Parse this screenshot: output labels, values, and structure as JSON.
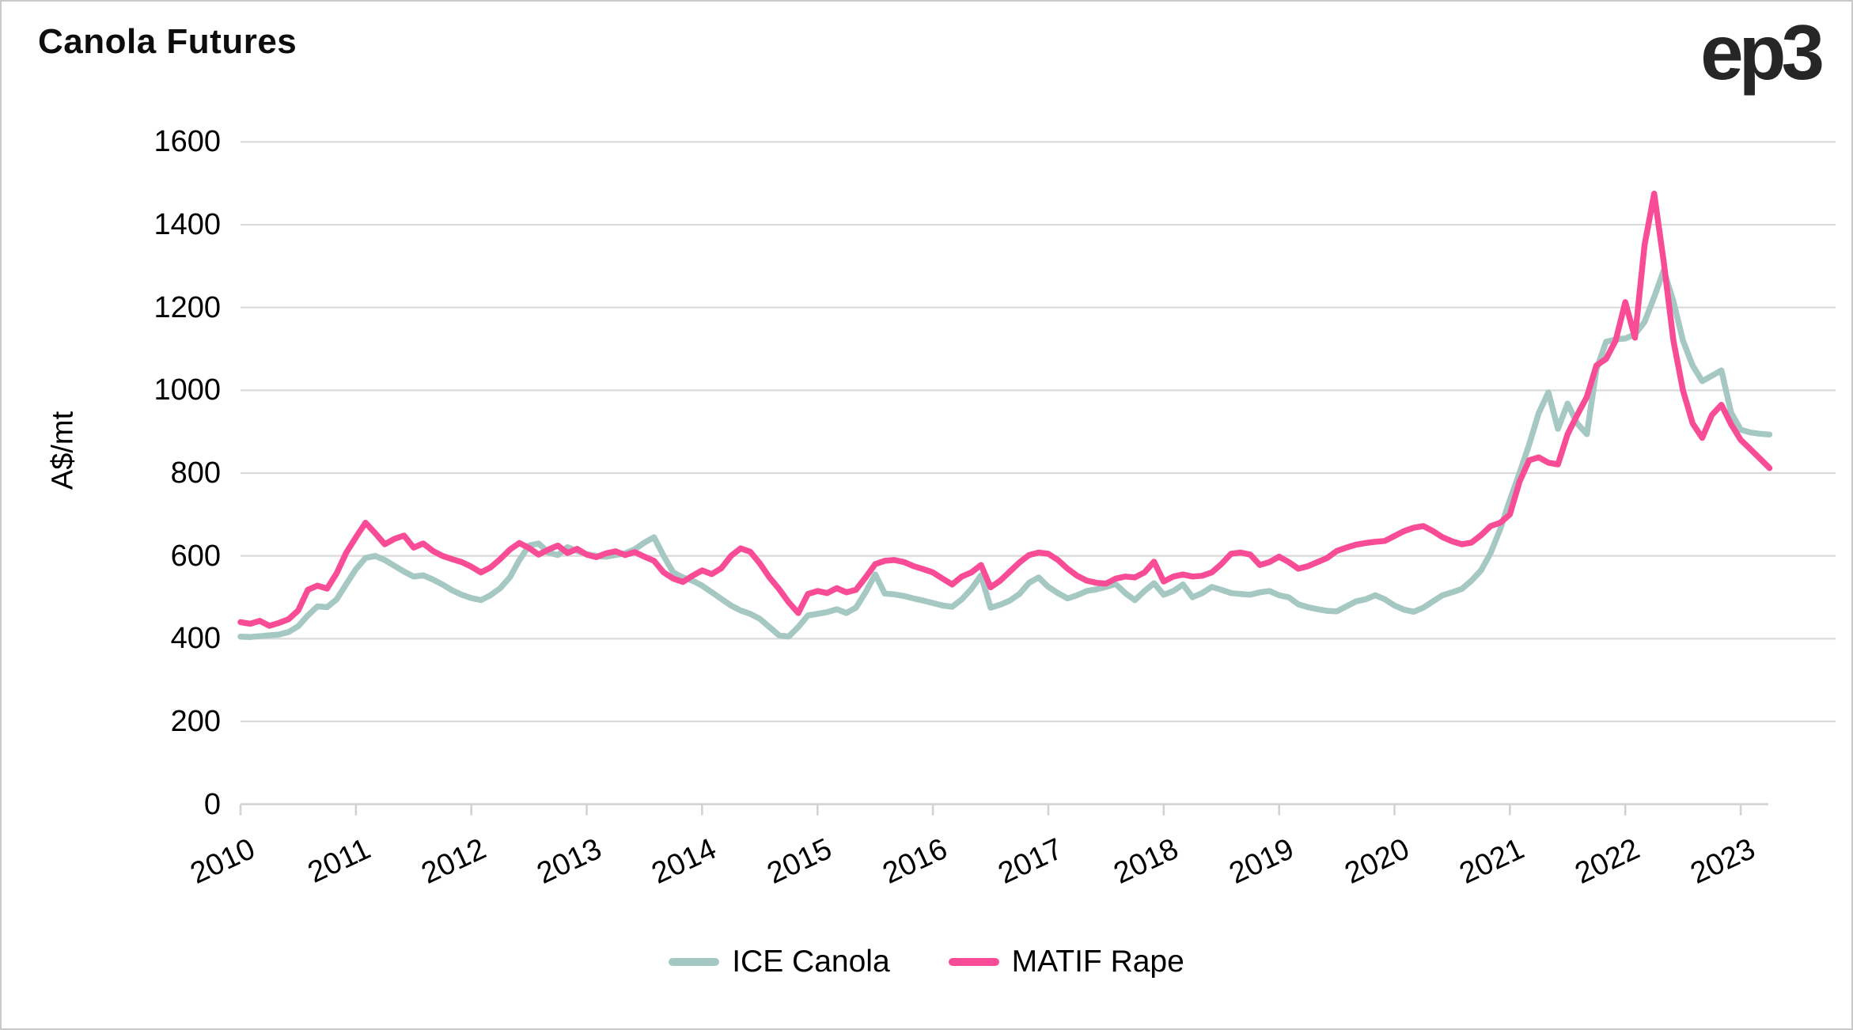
{
  "header": {
    "title": "Canola Futures",
    "logo_text": "ep3"
  },
  "page": {
    "background": "#ffffff",
    "border_color": "#c9c9c9"
  },
  "axis_style": {
    "gridline_color": "#dadada",
    "axis_line_color": "#d2d2d2",
    "text_color": "#000000"
  },
  "chart_data": {
    "type": "line",
    "title": "Canola Futures",
    "xlabel": "",
    "ylabel": "A$/mt",
    "ylim": [
      0,
      1600
    ],
    "y_ticks": [
      0,
      200,
      400,
      600,
      800,
      1000,
      1200,
      1400,
      1600
    ],
    "x_tick_labels": [
      "2010",
      "2011",
      "2012",
      "2013",
      "2014",
      "2015",
      "2016",
      "2017",
      "2018",
      "2019",
      "2020",
      "2021",
      "2022",
      "2023"
    ],
    "x_start": {
      "year": 2010,
      "month": 1
    },
    "x_end": {
      "year": 2023,
      "month": 4
    },
    "frequency": "monthly",
    "grid": "horizontal",
    "legend_position": "bottom-center",
    "series": [
      {
        "name": "ICE Canola",
        "color": "#a5c8c3",
        "values": [
          405,
          404,
          406,
          408,
          410,
          416,
          430,
          456,
          478,
          476,
          495,
          532,
          568,
          595,
          600,
          590,
          576,
          562,
          550,
          553,
          543,
          531,
          517,
          506,
          498,
          493,
          505,
          522,
          548,
          590,
          625,
          630,
          608,
          602,
          621,
          612,
          604,
          600,
          598,
          602,
          606,
          616,
          632,
          645,
          600,
          560,
          548,
          540,
          528,
          512,
          496,
          480,
          468,
          460,
          448,
          428,
          408,
          405,
          428,
          456,
          460,
          464,
          471,
          462,
          475,
          512,
          555,
          509,
          507,
          503,
          497,
          492,
          486,
          480,
          477,
          495,
          520,
          553,
          475,
          482,
          492,
          508,
          535,
          548,
          525,
          510,
          497,
          505,
          515,
          519,
          525,
          532,
          510,
          493,
          515,
          534,
          506,
          515,
          531,
          500,
          510,
          525,
          518,
          510,
          508,
          506,
          512,
          515,
          505,
          500,
          483,
          476,
          471,
          467,
          466,
          478,
          490,
          495,
          505,
          495,
          480,
          470,
          465,
          475,
          490,
          505,
          512,
          520,
          540,
          565,
          607,
          665,
          735,
          800,
          869,
          945,
          995,
          907,
          968,
          920,
          894,
          1050,
          1117,
          1123,
          1125,
          1135,
          1165,
          1225,
          1290,
          1215,
          1120,
          1060,
          1022,
          1035,
          1048,
          946,
          905,
          898,
          895,
          893
        ]
      },
      {
        "name": "MATIF Rape",
        "color": "#f84d96",
        "values": [
          440,
          436,
          443,
          431,
          438,
          447,
          468,
          518,
          528,
          521,
          558,
          608,
          645,
          680,
          655,
          628,
          641,
          649,
          620,
          630,
          612,
          600,
          592,
          585,
          574,
          560,
          572,
          592,
          615,
          631,
          619,
          603,
          615,
          625,
          607,
          617,
          603,
          597,
          606,
          611,
          602,
          609,
          598,
          588,
          560,
          545,
          537,
          552,
          565,
          556,
          570,
          600,
          618,
          610,
          582,
          548,
          520,
          488,
          462,
          508,
          515,
          510,
          522,
          512,
          518,
          548,
          580,
          588,
          590,
          585,
          575,
          568,
          560,
          545,
          531,
          550,
          560,
          578,
          524,
          540,
          562,
          584,
          602,
          608,
          605,
          590,
          569,
          552,
          540,
          535,
          533,
          545,
          550,
          548,
          560,
          586,
          538,
          550,
          555,
          550,
          552,
          560,
          580,
          605,
          608,
          603,
          578,
          585,
          598,
          585,
          569,
          575,
          585,
          595,
          612,
          620,
          627,
          631,
          634,
          636,
          648,
          660,
          668,
          672,
          660,
          645,
          635,
          628,
          632,
          650,
          672,
          680,
          700,
          779,
          831,
          838,
          825,
          821,
          894,
          940,
          984,
          1060,
          1076,
          1120,
          1213,
          1127,
          1350,
          1475,
          1310,
          1120,
          1000,
          920,
          885,
          940,
          965,
          918,
          880,
          858,
          835,
          812
        ]
      }
    ]
  }
}
